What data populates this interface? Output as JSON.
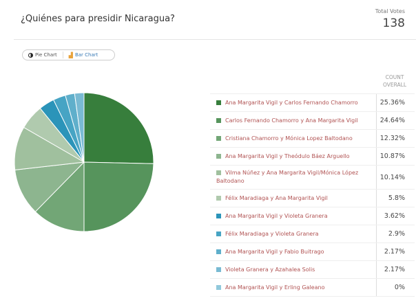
{
  "header": {
    "title": "¿Quiénes para presidir Nicaragua?",
    "total_votes_label": "Total Votes",
    "total_votes": "138"
  },
  "toggle": {
    "pie_label": "Pie Chart",
    "bar_label": "Bar Chart",
    "selected": "Pie Chart"
  },
  "chart_data": {
    "type": "pie",
    "column_header": "COUNT OVERALL",
    "categories": [
      "Ana Margarita Vigil y Carlos Fernando Chamorro",
      "Carlos Fernando Chamorro y Ana Margarita Vigil",
      "Cristiana Chamorro y Mónica Lopez Baltodano",
      "Ana Margarita Vigil y Theódulo Báez Arguello",
      "Vilma Núñez y Ana Margarita Vigil/Mónica López Baltodano",
      "Félix Maradiaga y Ana Margarita Vigil",
      "Ana Margarita Vigil y Violeta Granera",
      "Félix Maradiaga y Violeta Granera",
      "Ana Margarita Vigil y Fabio Buitrago",
      "Violeta Granera y Azahalea Solis",
      "Ana Margarita Vigil y Erling Galeano"
    ],
    "values": [
      25.36,
      24.64,
      12.32,
      10.87,
      10.14,
      5.8,
      3.62,
      2.9,
      2.17,
      2.17,
      0
    ],
    "labels": [
      "25.36%",
      "24.64%",
      "12.32%",
      "10.87%",
      "10.14%",
      "5.8%",
      "3.62%",
      "2.9%",
      "2.17%",
      "2.17%",
      "0%"
    ],
    "colors": [
      "#377e3c",
      "#56945c",
      "#72a676",
      "#8db58f",
      "#a0c09e",
      "#b0caae",
      "#2b94b9",
      "#47a4c4",
      "#5fafcb",
      "#79bad3",
      "#91c9dc"
    ]
  }
}
